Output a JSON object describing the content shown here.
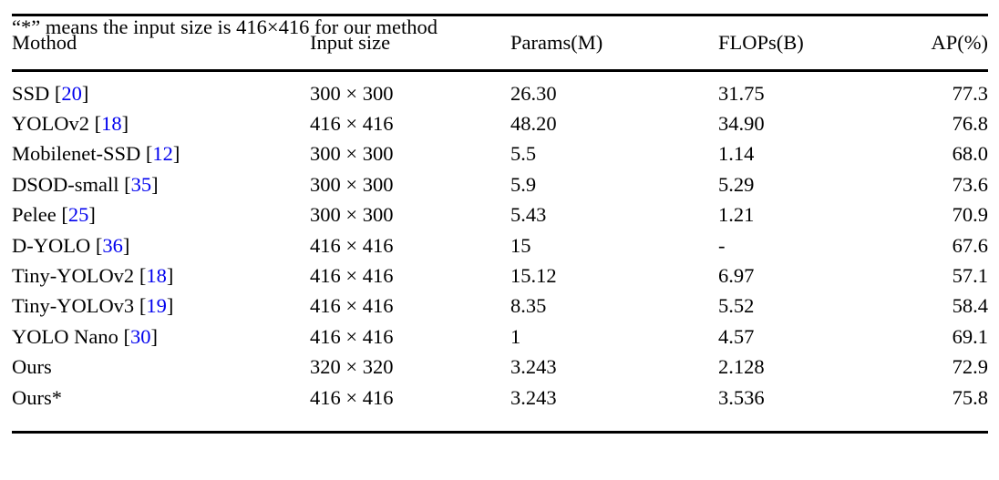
{
  "table": {
    "columns": [
      {
        "label": "Mothod"
      },
      {
        "label": "Input size"
      },
      {
        "label": "Params(M)"
      },
      {
        "label": "FLOPs(B)"
      },
      {
        "label": "AP(%)"
      }
    ],
    "rows": [
      {
        "method": "SSD",
        "cite": "20",
        "input_size": "300 × 300",
        "params": "26.30",
        "flops": "31.75",
        "ap": "77.3"
      },
      {
        "method": "YOLOv2",
        "cite": "18",
        "input_size": "416 × 416",
        "params": "48.20",
        "flops": "34.90",
        "ap": "76.8"
      },
      {
        "method": "Mobilenet-SSD",
        "cite": "12",
        "input_size": "300 × 300",
        "params": "5.5",
        "flops": "1.14",
        "ap": "68.0"
      },
      {
        "method": "DSOD-small",
        "cite": "35",
        "input_size": "300 × 300",
        "params": "5.9",
        "flops": "5.29",
        "ap": "73.6"
      },
      {
        "method": "Pelee",
        "cite": "25",
        "input_size": "300 × 300",
        "params": "5.43",
        "flops": "1.21",
        "ap": "70.9"
      },
      {
        "method": "D-YOLO",
        "cite": "36",
        "input_size": "416 × 416",
        "params": "15",
        "flops": "-",
        "ap": "67.6"
      },
      {
        "method": "Tiny-YOLOv2",
        "cite": "18",
        "input_size": "416 × 416",
        "params": "15.12",
        "flops": "6.97",
        "ap": "57.1"
      },
      {
        "method": "Tiny-YOLOv3",
        "cite": "19",
        "input_size": "416 × 416",
        "params": "8.35",
        "flops": "5.52",
        "ap": "58.4"
      },
      {
        "method": "YOLO Nano",
        "cite": "30",
        "input_size": "416 × 416",
        "params": "1",
        "flops": "4.57",
        "ap": "69.1"
      },
      {
        "method": "Ours",
        "cite": "",
        "input_size": "320 × 320",
        "params": "3.243",
        "flops": "2.128",
        "ap": "72.9"
      },
      {
        "method": "Ours*",
        "cite": "",
        "input_size": "416 × 416",
        "params": "3.243",
        "flops": "3.536",
        "ap": "75.8"
      }
    ]
  },
  "footnote": "“*” means the input size is 416×416 for our method",
  "colors": {
    "citation_link": "#0000EE",
    "text": "#000000",
    "rule": "#000000"
  }
}
